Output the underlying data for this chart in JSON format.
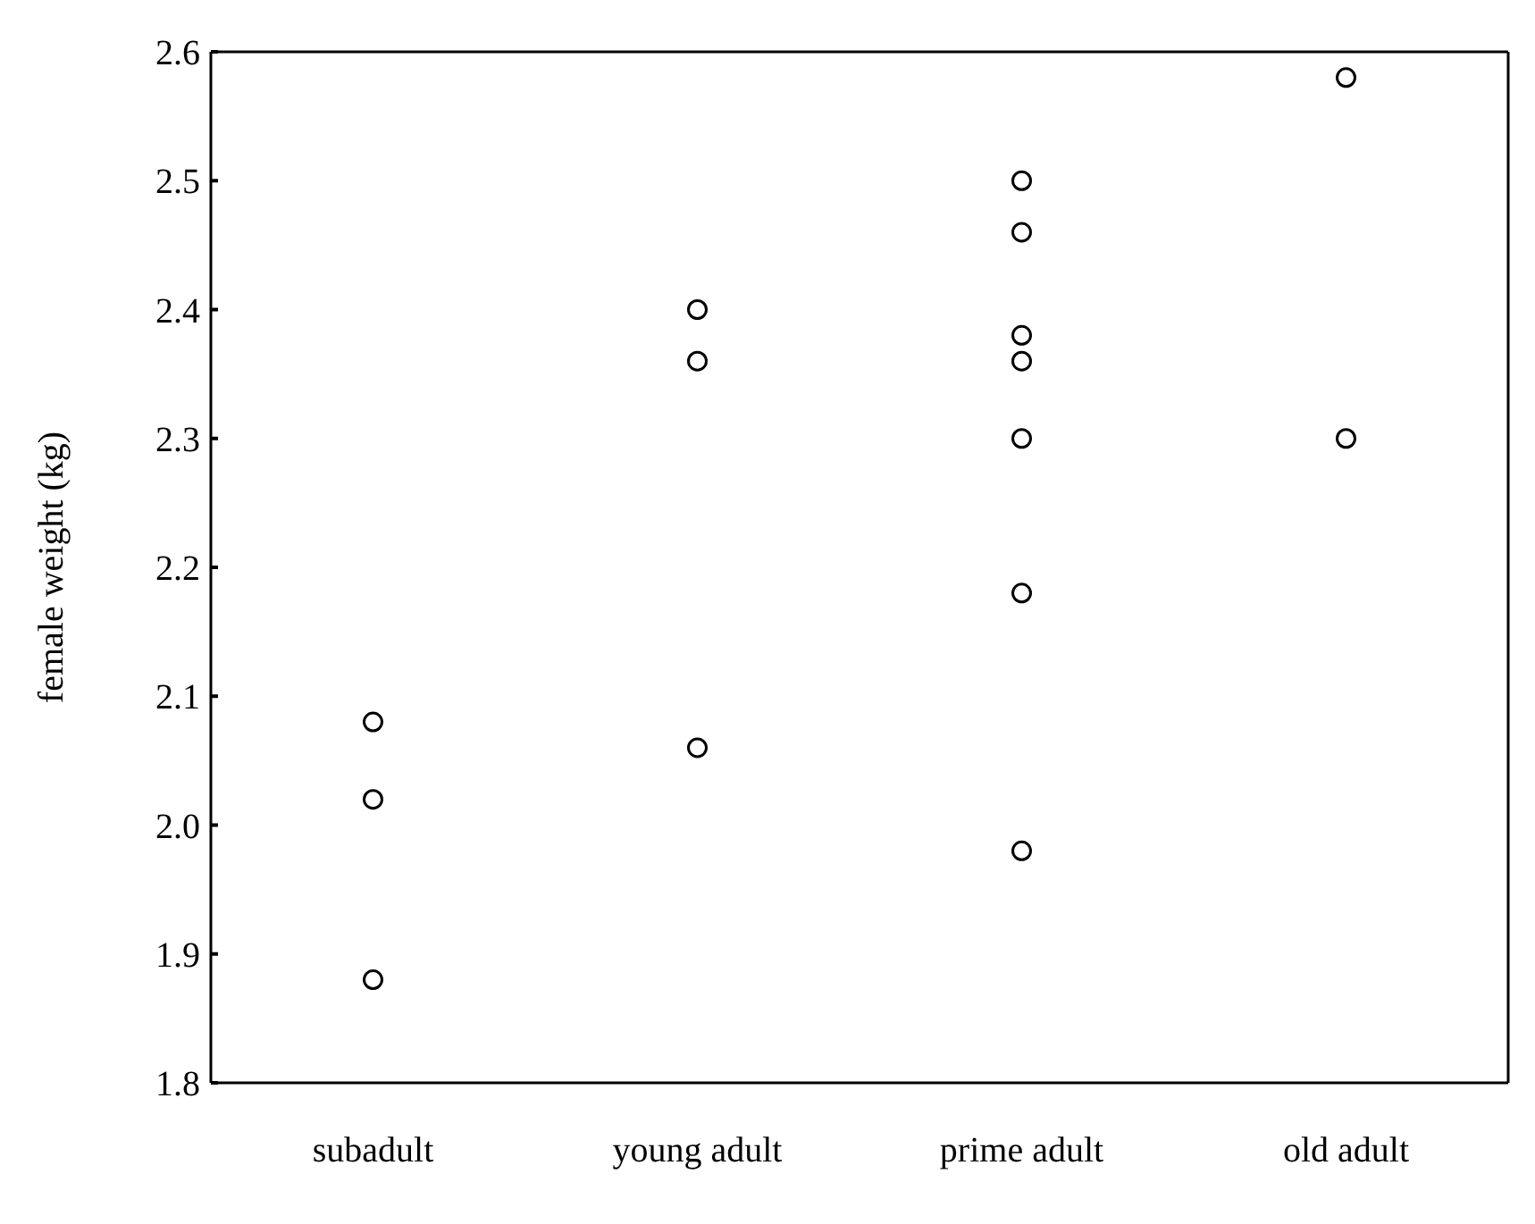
{
  "chart_data": {
    "type": "scatter",
    "ylabel": "female weight (kg)",
    "categories": [
      "subadult",
      "young adult",
      "prime adult",
      "old adult"
    ],
    "series": [
      {
        "color": "#000000",
        "x": [
          "subadult",
          "subadult",
          "subadult",
          "young adult",
          "young adult",
          "young adult",
          "prime adult",
          "prime adult",
          "prime adult",
          "prime adult",
          "prime adult",
          "prime adult",
          "prime adult",
          "old adult",
          "old adult"
        ],
        "values": [
          2.08,
          2.02,
          1.88,
          2.4,
          2.36,
          2.06,
          2.5,
          2.46,
          2.38,
          2.36,
          2.3,
          2.18,
          1.98,
          2.58,
          2.3
        ]
      }
    ],
    "ylim": [
      1.8,
      2.6
    ],
    "yticks": [
      1.8,
      1.9,
      {
        "value": 2,
        "label": "2.0"
      },
      2.1,
      2.2,
      2.3,
      2.4,
      2.5,
      2.6
    ],
    "marker": "circle"
  }
}
